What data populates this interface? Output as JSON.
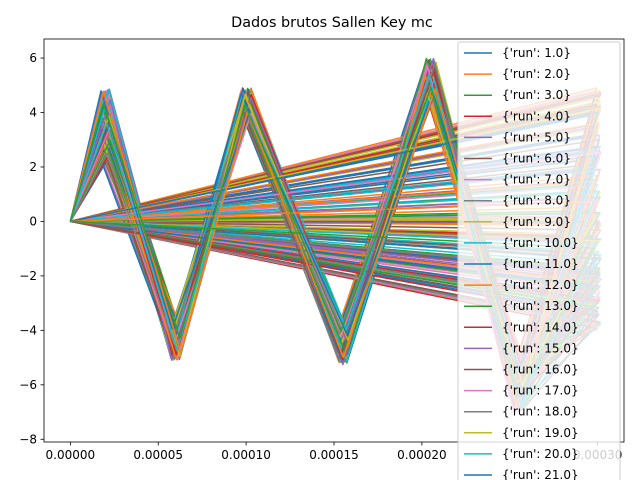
{
  "chart_data": {
    "type": "line",
    "title": "Dados brutos Sallen Key mc",
    "xlabel": "",
    "ylabel": "",
    "xlim": [
      -1.5e-05,
      0.000315
    ],
    "ylim": [
      -8.1,
      6.7
    ],
    "xticks": [
      0,
      5e-05,
      0.0001,
      0.00015,
      0.0002,
      0.0003
    ],
    "xtick_labels": [
      "0.00000",
      "0.00005",
      "0.00010",
      "0.00015",
      "0.00020",
      "0.00030"
    ],
    "yticks": [
      -8,
      -6,
      -4,
      -2,
      0,
      2,
      4,
      6
    ],
    "ytick_labels": [
      "−8",
      "−6",
      "−4",
      "−2",
      "0",
      "2",
      "4",
      "6"
    ],
    "grid": false,
    "legend_position": "top-right",
    "run_count": 21,
    "signal_segments": [
      {
        "t_start": 0,
        "t_end": 2e-05,
        "v_end_range": [
          2.3,
          4.9
        ]
      },
      {
        "t_start": 2e-05,
        "t_end": 6e-05,
        "v_end_range": [
          -5.1,
          -3.8
        ]
      },
      {
        "t_start": 6e-05,
        "t_end": 0.0001,
        "v_end_range": [
          3.9,
          4.9
        ]
      },
      {
        "t_start": 0.0001,
        "t_end": 0.000155,
        "v_end_range": [
          -5.3,
          -3.9
        ]
      },
      {
        "t_start": 0.000155,
        "t_end": 0.000205,
        "v_end_range": [
          4.6,
          6.0
        ]
      },
      {
        "t_start": 0.000205,
        "t_end": 0.000255,
        "v_end_range": [
          -7.0,
          -5.0
        ]
      }
    ],
    "series": [
      {
        "name": "{'run': 1.0}",
        "color": "#1f77b4"
      },
      {
        "name": "{'run': 2.0}",
        "color": "#ff7f0e"
      },
      {
        "name": "{'run': 3.0}",
        "color": "#2ca02c"
      },
      {
        "name": "{'run': 4.0}",
        "color": "#d62728"
      },
      {
        "name": "{'run': 5.0}",
        "color": "#9467bd"
      },
      {
        "name": "{'run': 6.0}",
        "color": "#8c564b"
      },
      {
        "name": "{'run': 7.0}",
        "color": "#e377c2"
      },
      {
        "name": "{'run': 8.0}",
        "color": "#7f7f7f"
      },
      {
        "name": "{'run': 9.0}",
        "color": "#bcbd22"
      },
      {
        "name": "{'run': 10.0}",
        "color": "#17becf"
      },
      {
        "name": "{'run': 11.0}",
        "color": "#1f77b4"
      },
      {
        "name": "{'run': 12.0}",
        "color": "#ff7f0e"
      },
      {
        "name": "{'run': 13.0}",
        "color": "#2ca02c"
      },
      {
        "name": "{'run': 14.0}",
        "color": "#d62728"
      },
      {
        "name": "{'run': 15.0}",
        "color": "#9467bd"
      },
      {
        "name": "{'run': 16.0}",
        "color": "#8c564b"
      },
      {
        "name": "{'run': 17.0}",
        "color": "#e377c2"
      },
      {
        "name": "{'run': 18.0}",
        "color": "#7f7f7f"
      },
      {
        "name": "{'run': 19.0}",
        "color": "#bcbd22"
      },
      {
        "name": "{'run': 20.0}",
        "color": "#17becf"
      },
      {
        "name": "{'run': 21.0}",
        "color": "#1f77b4"
      }
    ]
  }
}
